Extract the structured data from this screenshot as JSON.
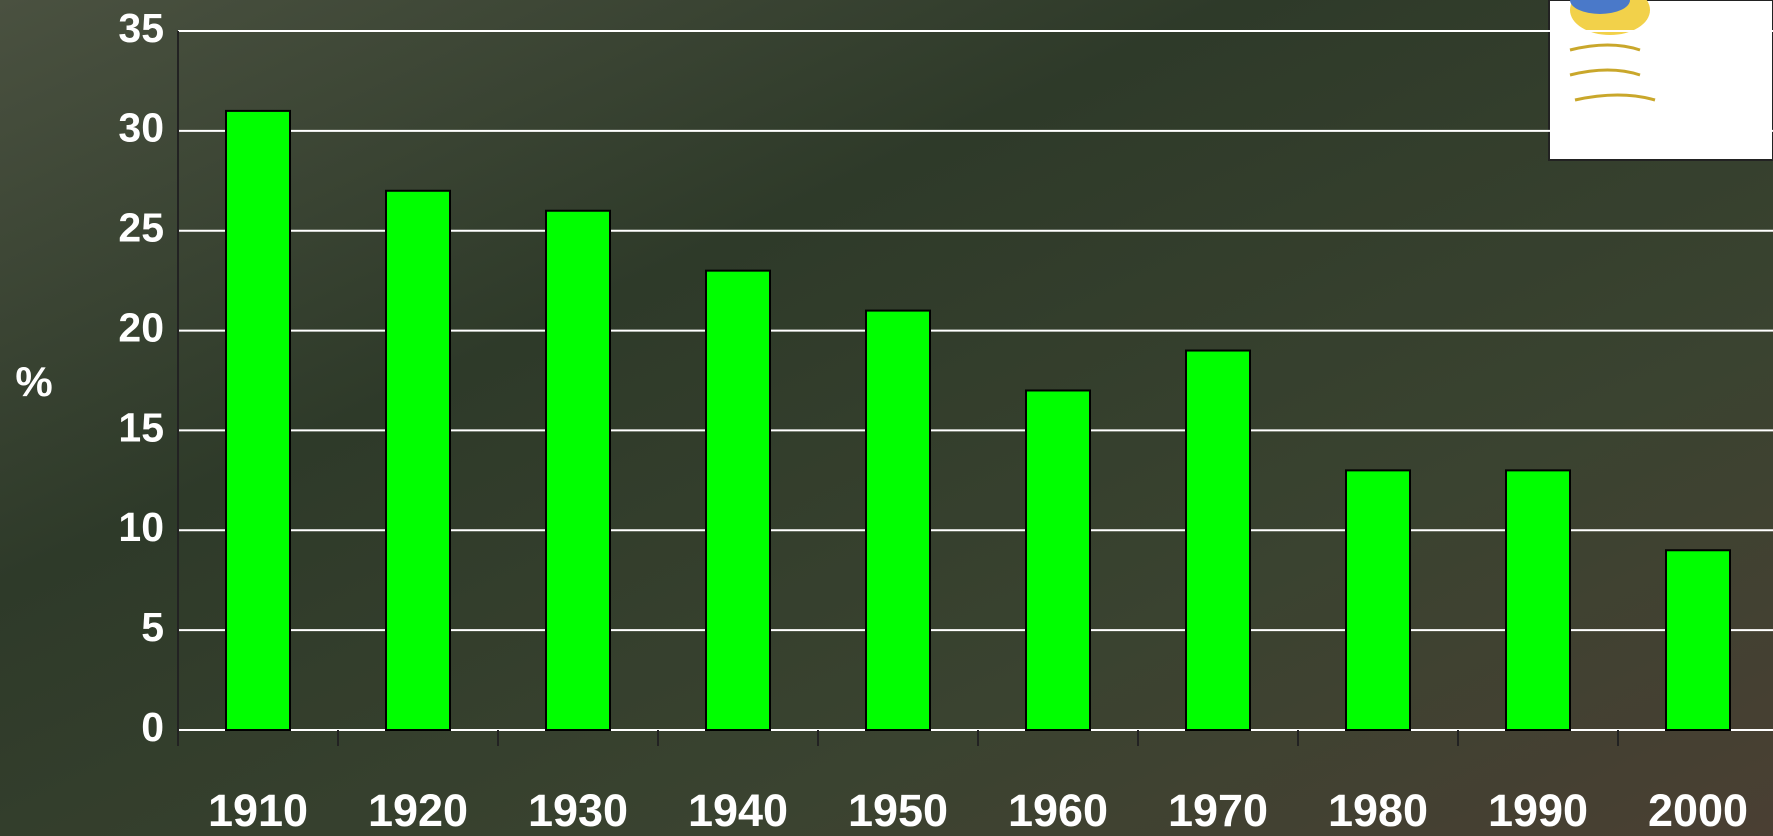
{
  "chart_data": {
    "type": "bar",
    "y_label": "%",
    "categories": [
      "1910",
      "1920",
      "1930",
      "1940",
      "1950",
      "1960",
      "1970",
      "1980",
      "1990",
      "2000"
    ],
    "values": [
      31,
      27,
      26,
      23,
      21,
      17,
      19,
      13,
      13,
      9
    ],
    "color": "#00ff00",
    "ylim": [
      0,
      35
    ],
    "yticks": [
      0,
      5,
      10,
      15,
      20,
      25,
      30,
      35
    ],
    "grid": true
  }
}
